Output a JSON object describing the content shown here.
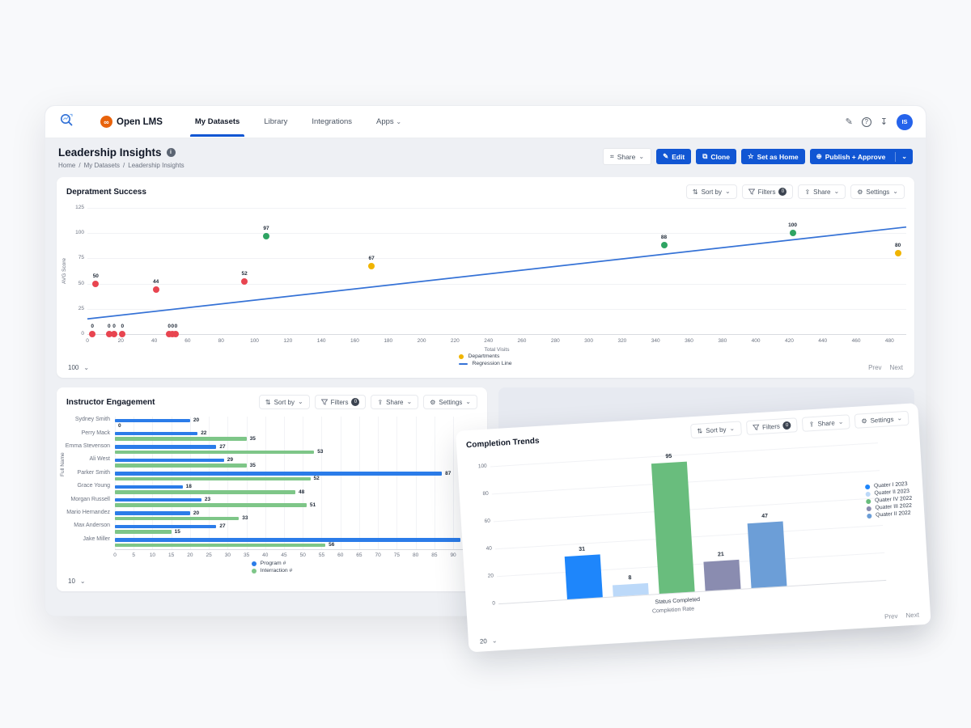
{
  "colors": {
    "accent_blue": "#1156d3",
    "scatter_red": "#e84550",
    "scatter_green": "#2fa463",
    "scatter_yellow": "#f0b400",
    "regression_blue": "#3572d6",
    "hbar_blue": "#2b7ce9",
    "hbar_green": "#7ec688"
  },
  "nav": {
    "brand": "Open LMS",
    "brand_glyph": "∞",
    "items": [
      {
        "label": "My Datasets",
        "active": true
      },
      {
        "label": "Library",
        "active": false
      },
      {
        "label": "Integrations",
        "active": false
      },
      {
        "label": "Apps",
        "active": false
      }
    ],
    "avatar": "IS"
  },
  "header": {
    "title": "Leadership Insights",
    "breadcrumb": {
      "home": "Home",
      "sep1": "/",
      "mid": "My Datasets",
      "sep2": "/",
      "last": "Leadership Insights"
    },
    "actions": {
      "share": "Share",
      "edit": "Edit",
      "clone": "Clone",
      "set_home": "Set as Home",
      "publish": "Publish + Approve"
    }
  },
  "controls": {
    "sort_by": "Sort by",
    "filters": "Filters",
    "filters_badge": "0",
    "share": "Share",
    "settings": "Settings"
  },
  "pager": {
    "prev": "Prev",
    "next": "Next"
  },
  "cards": {
    "scatter_page_size": "100",
    "hbar_page_size": "10",
    "vbar_page_size": "20"
  },
  "chart_data": [
    {
      "type": "scatter",
      "title": "Depratment Success",
      "xlabel": "Total Visits",
      "ylabel": "AVG Score",
      "xlim": [
        0,
        490
      ],
      "ylim": [
        0,
        125
      ],
      "xticks": [
        0,
        20,
        40,
        60,
        80,
        100,
        120,
        140,
        160,
        180,
        200,
        220,
        240,
        260,
        280,
        300,
        320,
        340,
        360,
        380,
        400,
        420,
        440,
        460,
        480
      ],
      "yticks": [
        0,
        25,
        50,
        75,
        100,
        125
      ],
      "points": [
        {
          "x": 3,
          "y": 0,
          "label": "0",
          "color": "red"
        },
        {
          "x": 5,
          "y": 50,
          "label": "50",
          "color": "red"
        },
        {
          "x": 13,
          "y": 0,
          "label": "0",
          "color": "red"
        },
        {
          "x": 16,
          "y": 0,
          "label": "0",
          "color": "red"
        },
        {
          "x": 21,
          "y": 0,
          "label": "0",
          "color": "red"
        },
        {
          "x": 41,
          "y": 44,
          "label": "44",
          "color": "red"
        },
        {
          "x": 49,
          "y": 0,
          "label": "0",
          "color": "red"
        },
        {
          "x": 51,
          "y": 0,
          "label": "0",
          "color": "red"
        },
        {
          "x": 53,
          "y": 0,
          "label": "0",
          "color": "red"
        },
        {
          "x": 94,
          "y": 52,
          "label": "52",
          "color": "red"
        },
        {
          "x": 107,
          "y": 97,
          "label": "97",
          "color": "green"
        },
        {
          "x": 170,
          "y": 67,
          "label": "67",
          "color": "yellow"
        },
        {
          "x": 345,
          "y": 88,
          "label": "88",
          "color": "green"
        },
        {
          "x": 422,
          "y": 100,
          "label": "100",
          "color": "green"
        },
        {
          "x": 485,
          "y": 80,
          "label": "80",
          "color": "yellow"
        }
      ],
      "regression": {
        "x1": 0,
        "y1": 15,
        "x2": 490,
        "y2": 106
      },
      "legend": [
        {
          "label": "Departments",
          "marker": "dot",
          "color": "yellow"
        },
        {
          "label": "Regression Line",
          "marker": "line",
          "color": "blue"
        }
      ]
    },
    {
      "type": "bar-horizontal",
      "title": "Instructor Engagement",
      "ylabel": "Full Name",
      "categories": [
        "Sydney Smith",
        "Perry Mack",
        "Emma Stevenson",
        "Ali West",
        "Parker Smith",
        "Grace Young",
        "Morgan Russell",
        "Mario Hernandez",
        "Max Anderson",
        "Jake Miller"
      ],
      "series": [
        {
          "name": "Program #",
          "color": "#2b7ce9",
          "values": [
            20,
            22,
            27,
            29,
            87,
            18,
            23,
            20,
            27,
            92
          ]
        },
        {
          "name": "Interraction #",
          "color": "#7ec688",
          "values": [
            0,
            35,
            53,
            35,
            52,
            48,
            51,
            33,
            15,
            56
          ]
        }
      ],
      "xticks": [
        0,
        5,
        10,
        15,
        20,
        25,
        30,
        35,
        40,
        45,
        50,
        55,
        60,
        65,
        70,
        75,
        80,
        85,
        90
      ],
      "xlim": [
        0,
        93
      ]
    },
    {
      "type": "bar",
      "title": "Completion Trends",
      "xlabel_line1": "Status Completed",
      "xlabel_line2": "Completion Rate",
      "yticks": [
        0,
        20,
        40,
        60,
        80,
        100
      ],
      "ylim": [
        0,
        100
      ],
      "series": [
        {
          "name": "Quater I 2023",
          "color": "#1e86fb",
          "value": 31
        },
        {
          "name": "Quater II 2023",
          "color": "#bcd9f9",
          "value": 8
        },
        {
          "name": "Quater IV 2022",
          "color": "#69bd7d",
          "value": 95
        },
        {
          "name": "Quater III 2022",
          "color": "#8a8cb0",
          "value": 21
        },
        {
          "name": "Quater II 2022",
          "color": "#6c9ed7",
          "value": 47
        }
      ]
    }
  ]
}
